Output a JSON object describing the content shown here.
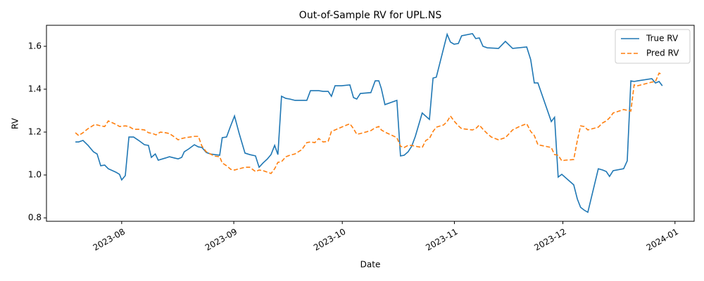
{
  "chart_data": {
    "type": "line",
    "title": "Out-of-Sample RV for UPL.NS",
    "xlabel": "Date",
    "ylabel": "RV",
    "xlim": [
      19549.2,
      19728.3
    ],
    "xticks": [
      {
        "value": 19570,
        "label": "2023-08"
      },
      {
        "value": 19601,
        "label": "2023-09"
      },
      {
        "value": 19631,
        "label": "2023-10"
      },
      {
        "value": 19662,
        "label": "2023-11"
      },
      {
        "value": 19692,
        "label": "2023-12"
      },
      {
        "value": 19723,
        "label": "2024-01"
      }
    ],
    "ylim": [
      0.784,
      1.698
    ],
    "yticks": [
      0.8,
      {
        "value": 1,
        "label": "1.0"
      },
      1.2,
      1.4,
      1.6
    ],
    "grid": false,
    "legend": "upper right",
    "series": [
      {
        "name": "True RV",
        "color": "#1f77b4",
        "linestyle": "solid",
        "x": [
          19557.2,
          19558.1,
          19559.3,
          19560.7,
          19562.2,
          19563.2,
          19564.2,
          19565.3,
          19566.3,
          19568.4,
          19569.4,
          19570,
          19571,
          19572,
          19573.3,
          19574.7,
          19576.3,
          19577.4,
          19578.2,
          19579.3,
          19580.1,
          19582.1,
          19583.2,
          19584.6,
          19585.6,
          19586.6,
          19587.3,
          19588.5,
          19590.1,
          19591.2,
          19592.2,
          19593.4,
          19594.5,
          19595.7,
          19597.1,
          19597.8,
          19599,
          19600,
          19601.2,
          19602.5,
          19604.1,
          19605.4,
          19607,
          19608,
          19609.1,
          19610.3,
          19611.3,
          19612.3,
          19613.2,
          19614.2,
          19615.4,
          19616.5,
          19617.9,
          19619.8,
          19621.2,
          19622.2,
          19623.4,
          19624.5,
          19625.7,
          19627.1,
          19628,
          19629,
          19630.8,
          19633.1,
          19634.1,
          19635,
          19636,
          19638.9,
          19640.1,
          19641.1,
          19641.8,
          19642.8,
          19646.1,
          19647.1,
          19648.1,
          19649.2,
          19650.2,
          19651.2,
          19653.1,
          19655.1,
          19656.1,
          19657,
          19660,
          19660.9,
          19661.9,
          19663.1,
          19664,
          19667,
          19667.9,
          19668.9,
          19669.9,
          19671.1,
          19674.2,
          19676.1,
          19678.1,
          19682,
          19683.1,
          19684.1,
          19685.1,
          19688.8,
          19689.7,
          19690.7,
          19691.7,
          19695,
          19696,
          19696.9,
          19697.9,
          19698.9,
          19701.8,
          19703,
          19704,
          19704.9,
          19705.9,
          19708.8,
          19709.8,
          19710.8,
          19711.7,
          19712.7,
          19716.6,
          19717.6,
          19718.6,
          19719.5
        ],
        "values": [
          1.154,
          1.154,
          1.161,
          1.138,
          1.108,
          1.098,
          1.043,
          1.046,
          1.029,
          1.013,
          1.003,
          0.977,
          0.997,
          1.177,
          1.177,
          1.161,
          1.141,
          1.138,
          1.082,
          1.098,
          1.069,
          1.079,
          1.085,
          1.079,
          1.075,
          1.082,
          1.108,
          1.121,
          1.141,
          1.131,
          1.128,
          1.105,
          1.098,
          1.095,
          1.092,
          1.174,
          1.177,
          1.223,
          1.275,
          1.193,
          1.102,
          1.095,
          1.089,
          1.036,
          1.056,
          1.075,
          1.095,
          1.138,
          1.095,
          1.367,
          1.357,
          1.354,
          1.348,
          1.348,
          1.348,
          1.393,
          1.393,
          1.393,
          1.39,
          1.39,
          1.367,
          1.416,
          1.416,
          1.42,
          1.361,
          1.354,
          1.38,
          1.384,
          1.439,
          1.439,
          1.403,
          1.328,
          1.348,
          1.089,
          1.092,
          1.108,
          1.134,
          1.18,
          1.289,
          1.259,
          1.452,
          1.456,
          1.656,
          1.62,
          1.61,
          1.613,
          1.649,
          1.659,
          1.636,
          1.639,
          1.6,
          1.593,
          1.59,
          1.623,
          1.59,
          1.597,
          1.538,
          1.429,
          1.429,
          1.249,
          1.269,
          0.99,
          1.003,
          0.954,
          0.888,
          0.849,
          0.836,
          0.826,
          1.029,
          1.023,
          1.016,
          0.993,
          1.02,
          1.029,
          1.066,
          1.439,
          1.436,
          1.439,
          1.449,
          1.429,
          1.436,
          1.416
        ]
      },
      {
        "name": "Pred RV",
        "color": "#ff7f0e",
        "linestyle": "dashed",
        "x": [
          19557.2,
          19558.1,
          19559.3,
          19560.7,
          19562.6,
          19564.2,
          19565.3,
          19566.3,
          19568.4,
          19569.4,
          19571,
          19572,
          19573.3,
          19574.7,
          19576.3,
          19577.4,
          19578.6,
          19579.5,
          19580.7,
          19582.1,
          19583.2,
          19584.6,
          19585.6,
          19586.6,
          19587.7,
          19588.9,
          19590.1,
          19591.2,
          19592.2,
          19593.4,
          19594.5,
          19595.7,
          19597.1,
          19597.8,
          19599,
          19600.2,
          19601.2,
          19602.5,
          19604.1,
          19605.4,
          19607,
          19608,
          19609.1,
          19610.3,
          19611.3,
          19612.3,
          19613.2,
          19614.2,
          19615.4,
          19616.5,
          19617.9,
          19619.8,
          19621.2,
          19622.2,
          19623.4,
          19624.5,
          19625.7,
          19627.1,
          19628,
          19629,
          19630.8,
          19633.1,
          19634.1,
          19635,
          19636,
          19638.9,
          19640.1,
          19641.1,
          19641.8,
          19642.8,
          19646.1,
          19647.1,
          19648.1,
          19649.2,
          19650.2,
          19651.2,
          19653.1,
          19654.1,
          19655.1,
          19656.1,
          19657,
          19659,
          19660,
          19660.9,
          19661.9,
          19663.1,
          19664,
          19667,
          19667.9,
          19668.9,
          19669.9,
          19671.1,
          19672.2,
          19674.2,
          19676.1,
          19678.1,
          19680,
          19682,
          19683.1,
          19684.1,
          19685.1,
          19688.8,
          19689.7,
          19690.7,
          19691.7,
          19692.7,
          19695,
          19696,
          19696.9,
          19697.9,
          19698.9,
          19701.8,
          19703,
          19704,
          19704.9,
          19705.9,
          19708.8,
          19710.8,
          19711.7,
          19712.7,
          19716.6,
          19717.6,
          19718.6,
          19719.5
        ],
        "values": [
          1.197,
          1.184,
          1.197,
          1.216,
          1.236,
          1.229,
          1.226,
          1.252,
          1.236,
          1.226,
          1.229,
          1.226,
          1.213,
          1.213,
          1.21,
          1.197,
          1.193,
          1.187,
          1.2,
          1.197,
          1.193,
          1.177,
          1.164,
          1.17,
          1.174,
          1.177,
          1.18,
          1.18,
          1.134,
          1.108,
          1.098,
          1.088,
          1.085,
          1.056,
          1.043,
          1.026,
          1.023,
          1.029,
          1.036,
          1.036,
          1.016,
          1.023,
          1.02,
          1.013,
          1.007,
          1.029,
          1.059,
          1.062,
          1.085,
          1.092,
          1.098,
          1.118,
          1.151,
          1.154,
          1.151,
          1.17,
          1.154,
          1.157,
          1.203,
          1.21,
          1.223,
          1.239,
          1.216,
          1.19,
          1.193,
          1.207,
          1.22,
          1.226,
          1.21,
          1.2,
          1.174,
          1.134,
          1.128,
          1.138,
          1.138,
          1.134,
          1.128,
          1.161,
          1.17,
          1.203,
          1.223,
          1.233,
          1.249,
          1.275,
          1.252,
          1.229,
          1.216,
          1.21,
          1.216,
          1.233,
          1.213,
          1.193,
          1.177,
          1.164,
          1.174,
          1.21,
          1.226,
          1.239,
          1.203,
          1.184,
          1.141,
          1.128,
          1.095,
          1.092,
          1.066,
          1.069,
          1.072,
          1.161,
          1.229,
          1.226,
          1.21,
          1.223,
          1.243,
          1.252,
          1.266,
          1.289,
          1.305,
          1.298,
          1.42,
          1.416,
          1.433,
          1.436,
          1.475,
          1.469
        ]
      }
    ]
  }
}
